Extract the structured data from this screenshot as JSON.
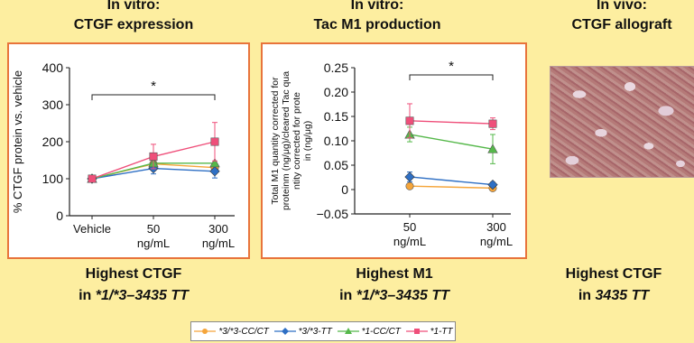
{
  "panels": [
    {
      "title_line1": "In vitro:",
      "title_line2": "CTGF expression",
      "summary_line1": "Highest CTGF",
      "summary_prefix": "in ",
      "summary_em": "*1/*3–3435 TT"
    },
    {
      "title_line1": "In vitro:",
      "title_line2": "Tac M1 production",
      "summary_line1": "Highest M1",
      "summary_prefix": "in ",
      "summary_em": "*1/*3–3435 TT"
    },
    {
      "title_line1": "In vivo:",
      "title_line2": "CTGF allograft",
      "summary_line1": "Highest CTGF",
      "summary_prefix": "in ",
      "summary_em": "3435 TT"
    }
  ],
  "colors": {
    "s1": "#f5a53a",
    "s2": "#2e6fc4",
    "s3": "#55b84a",
    "s4": "#ef4f7a"
  },
  "legend": [
    "*3/*3-CC/CT",
    "*3/*3-TT",
    "*1-CC/CT",
    "*1-TT"
  ],
  "chart_data": [
    {
      "type": "line",
      "categories": [
        "Vehicle",
        "50\nng/mL",
        "300\nng/mL"
      ],
      "ylabel": "% CTGF protein vs. vehicle",
      "ylim": [
        0,
        400
      ],
      "yticks": [
        0,
        100,
        200,
        300,
        400
      ],
      "annotation": "*",
      "series": [
        {
          "name": "*3/*3-CC/CT",
          "values": [
            100,
            140,
            130
          ],
          "err": [
            0,
            0,
            0
          ]
        },
        {
          "name": "*3/*3-TT",
          "values": [
            100,
            128,
            120
          ],
          "err": [
            0,
            15,
            18
          ]
        },
        {
          "name": "*1-CC/CT",
          "values": [
            100,
            142,
            142
          ],
          "err": [
            0,
            0,
            0
          ]
        },
        {
          "name": "*1-TT",
          "values": [
            100,
            160,
            200
          ],
          "err": [
            0,
            33,
            52
          ]
        }
      ]
    },
    {
      "type": "line",
      "categories": [
        "50\nng/mL",
        "300\nng/mL"
      ],
      "ylabel": "Total M1 quantity corrected for proteinm (ng/μg)/cleared Tac quantity corrected for protein (ng/μg)",
      "ylim": [
        -0.05,
        0.25
      ],
      "yticks": [
        -0.05,
        0,
        0.05,
        0.1,
        0.15,
        0.2,
        0.25
      ],
      "annotation": "*",
      "series": [
        {
          "name": "*3/*3-CC/CT",
          "values": [
            0.007,
            0.003
          ],
          "err": [
            0,
            0
          ]
        },
        {
          "name": "*3/*3-TT",
          "values": [
            0.026,
            0.01
          ],
          "err": [
            0.01,
            0.005
          ]
        },
        {
          "name": "*1-CC/CT",
          "values": [
            0.113,
            0.083
          ],
          "err": [
            0.015,
            0.03
          ]
        },
        {
          "name": "*1-TT",
          "values": [
            0.141,
            0.135
          ],
          "err": [
            0.035,
            0.012
          ]
        }
      ]
    }
  ]
}
